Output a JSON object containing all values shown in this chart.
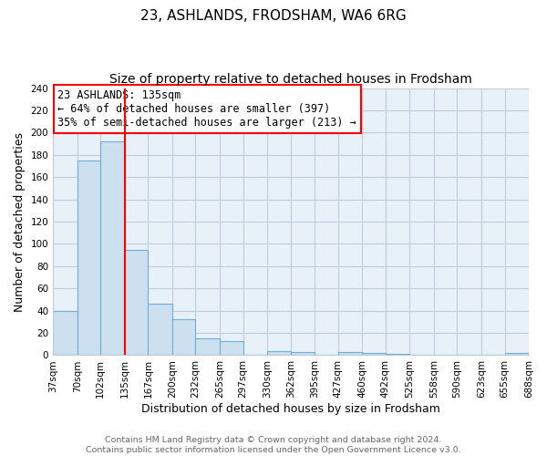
{
  "title": "23, ASHLANDS, FRODSHAM, WA6 6RG",
  "subtitle": "Size of property relative to detached houses in Frodsham",
  "xlabel": "Distribution of detached houses by size in Frodsham",
  "ylabel": "Number of detached properties",
  "bin_edges": [
    37,
    70,
    102,
    135,
    167,
    200,
    232,
    265,
    297,
    330,
    362,
    395,
    427,
    460,
    492,
    525,
    558,
    590,
    623,
    655,
    688
  ],
  "bar_heights": [
    40,
    175,
    192,
    95,
    46,
    32,
    15,
    13,
    0,
    4,
    3,
    0,
    3,
    2,
    1,
    0,
    0,
    0,
    0,
    2
  ],
  "bar_color": "#cce0f0",
  "bar_edge_color": "#6baed6",
  "plot_bg_color": "#e8f0f8",
  "property_line_x": 135,
  "ylim": [
    0,
    240
  ],
  "yticks": [
    0,
    20,
    40,
    60,
    80,
    100,
    120,
    140,
    160,
    180,
    200,
    220,
    240
  ],
  "xtick_labels": [
    "37sqm",
    "70sqm",
    "102sqm",
    "135sqm",
    "167sqm",
    "200sqm",
    "232sqm",
    "265sqm",
    "297sqm",
    "330sqm",
    "362sqm",
    "395sqm",
    "427sqm",
    "460sqm",
    "492sqm",
    "525sqm",
    "558sqm",
    "590sqm",
    "623sqm",
    "655sqm",
    "688sqm"
  ],
  "annotation_title": "23 ASHLANDS: 135sqm",
  "annotation_line1": "← 64% of detached houses are smaller (397)",
  "annotation_line2": "35% of semi-detached houses are larger (213) →",
  "footer_line1": "Contains HM Land Registry data © Crown copyright and database right 2024.",
  "footer_line2": "Contains public sector information licensed under the Open Government Licence v3.0.",
  "background_color": "#ffffff",
  "grid_color": "#c0ccd8",
  "title_fontsize": 11,
  "subtitle_fontsize": 10,
  "axis_label_fontsize": 9,
  "tick_fontsize": 7.5,
  "footer_fontsize": 6.8,
  "annotation_fontsize": 8.5
}
